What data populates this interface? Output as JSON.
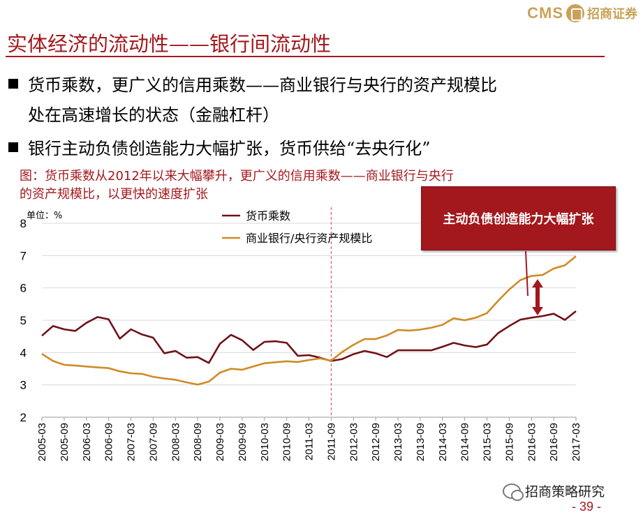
{
  "logo": {
    "brand": "CMS",
    "name": "招商证券",
    "mark_color": "#c9a25a"
  },
  "title": "实体经济的流动性——银行间流动性",
  "bullets": [
    {
      "line1": "货币乘数，更广义的信用乘数——商业银行与央行的资产规模比",
      "line2": "处在高速增长的状态（金融杠杆）"
    },
    {
      "line1": "银行主动负债创造能力大幅扩张，货币供给“去央行化”"
    }
  ],
  "figure": {
    "caption_line1": "图：货币乘数从2012年以来大幅攀升，更广义的信用乘数——商业银行与央行",
    "caption_line2": "的资产规模比，以更快的速度扩张",
    "unit": "单位：%",
    "callout": "主动负债创造能力大幅扩张"
  },
  "watermark": "招商策略研究",
  "page_number": "- 39 -",
  "colors": {
    "accent": "#a3181d",
    "series1": "#6e1218",
    "series2": "#d08a26"
  },
  "chart_data": {
    "type": "line",
    "x_labels": [
      "2005-03",
      "2005-09",
      "2006-03",
      "2006-09",
      "2007-03",
      "2007-09",
      "2008-03",
      "2008-09",
      "2009-03",
      "2009-09",
      "2010-03",
      "2010-09",
      "2011-03",
      "2011-09",
      "2012-03",
      "2012-09",
      "2013-03",
      "2013-09",
      "2014-03",
      "2014-09",
      "2015-03",
      "2015-09",
      "2016-03",
      "2016-09",
      "2017-03"
    ],
    "ylim": [
      2,
      8
    ],
    "yticks": [
      2,
      3,
      4,
      5,
      6,
      7,
      8
    ],
    "vline_at": "2011-09",
    "series": [
      {
        "name": "货币乘数",
        "color": "#6e1218",
        "values": [
          4.52,
          4.82,
          4.72,
          4.67,
          4.92,
          5.1,
          5.03,
          4.43,
          4.72,
          4.56,
          4.46,
          3.98,
          4.05,
          3.84,
          3.86,
          3.68,
          4.27,
          4.55,
          4.38,
          4.08,
          4.33,
          4.35,
          4.3,
          3.9,
          3.92,
          3.84,
          3.74,
          3.8,
          3.95,
          4.05,
          3.98,
          3.86,
          4.07,
          4.07,
          4.07,
          4.07,
          4.18,
          4.3,
          4.22,
          4.17,
          4.25,
          4.6,
          4.82,
          5.02,
          5.08,
          5.13,
          5.2,
          5.01,
          5.28
        ]
      },
      {
        "name": "商业银行/央行资产规模比",
        "color": "#d08a26",
        "values": [
          3.96,
          3.74,
          3.62,
          3.6,
          3.57,
          3.54,
          3.52,
          3.42,
          3.36,
          3.34,
          3.25,
          3.2,
          3.16,
          3.08,
          3.01,
          3.1,
          3.38,
          3.5,
          3.47,
          3.57,
          3.67,
          3.7,
          3.73,
          3.71,
          3.77,
          3.82,
          3.75,
          4.02,
          4.24,
          4.42,
          4.42,
          4.53,
          4.7,
          4.68,
          4.71,
          4.77,
          4.86,
          5.06,
          5.0,
          5.08,
          5.22,
          5.6,
          5.95,
          6.24,
          6.37,
          6.4,
          6.6,
          6.7,
          6.98
        ]
      }
    ]
  }
}
